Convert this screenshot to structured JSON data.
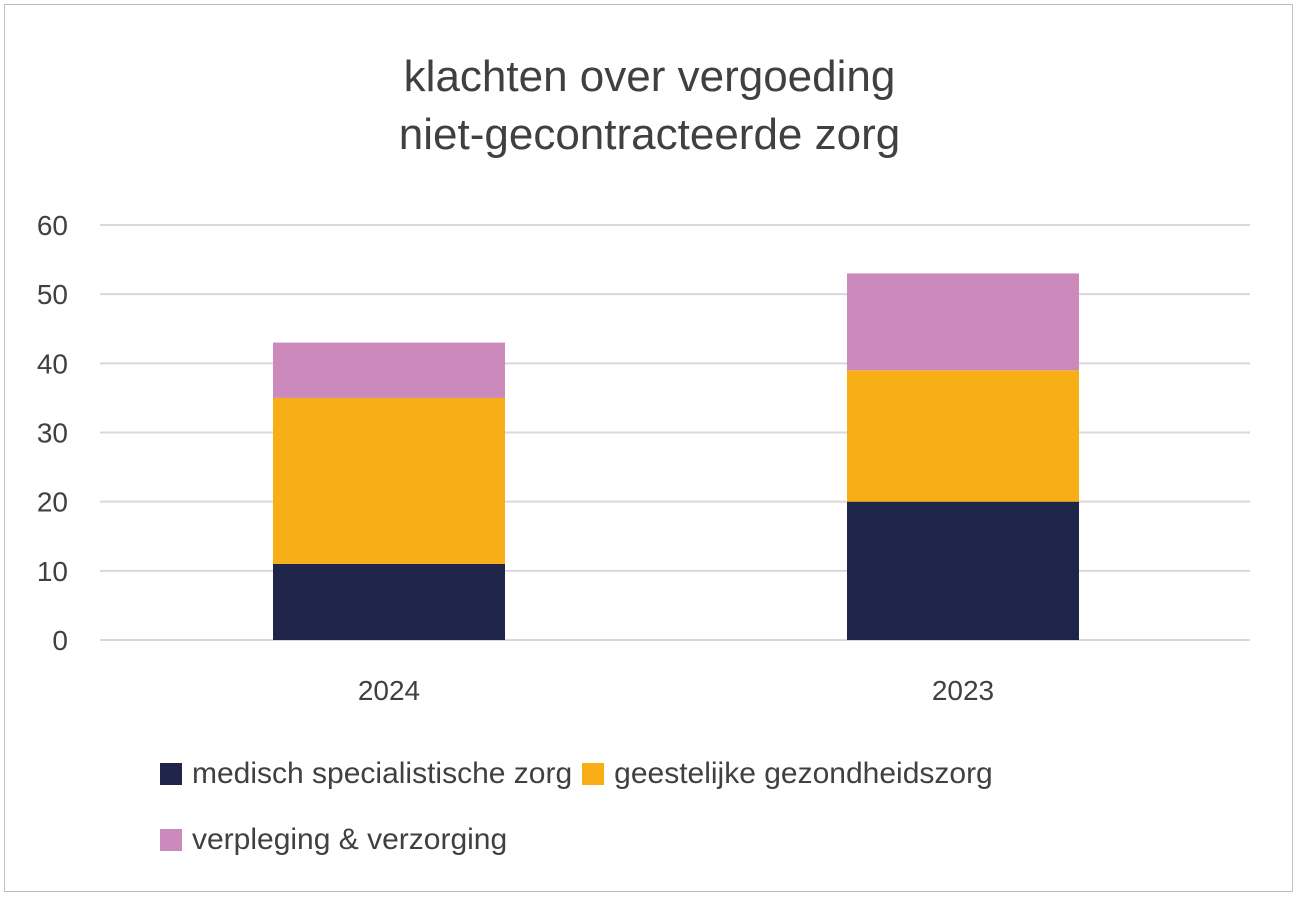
{
  "chart_data": {
    "type": "bar",
    "stacked": true,
    "title": "klachten over vergoeding niet-gecontracteerde zorg",
    "title_lines": [
      "klachten over vergoeding",
      "niet-gecontracteerde zorg"
    ],
    "categories": [
      "2024",
      "2023"
    ],
    "series": [
      {
        "name": "medisch specialistische zorg",
        "color": "#1f2548",
        "values": [
          11,
          20
        ]
      },
      {
        "name": "geestelijke gezondheidszorg",
        "color": "#f8af17",
        "values": [
          24,
          19
        ]
      },
      {
        "name": "verpleging & verzorging",
        "color": "#cb8abb",
        "values": [
          8,
          14
        ]
      }
    ],
    "ylim": [
      0,
      60
    ],
    "yticks": [
      "0",
      "10",
      "20",
      "30",
      "40",
      "50",
      "60"
    ],
    "grid": true,
    "legend_position": "bottom",
    "xlabel": "",
    "ylabel": ""
  }
}
